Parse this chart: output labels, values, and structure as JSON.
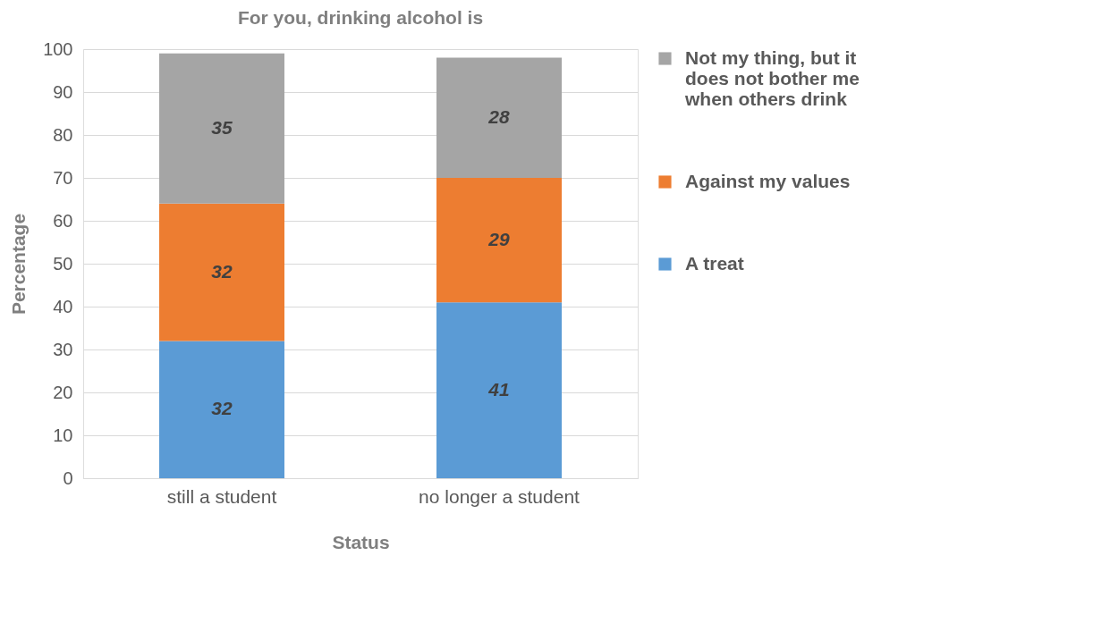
{
  "chart_data": {
    "type": "bar",
    "title": "For you, drinking alcohol is",
    "xlabel": "Status",
    "ylabel": "Percentage",
    "categories": [
      "still a student",
      "no longer a student"
    ],
    "series": [
      {
        "name": "A  treat",
        "color": "#5b9bd5",
        "values": [
          32,
          41
        ]
      },
      {
        "name": "Against my values",
        "color": "#ed7d31",
        "values": [
          32,
          29
        ]
      },
      {
        "name": "Not my thing, but it does not bother me when others drink",
        "color": "#a5a5a5",
        "values": [
          35,
          28
        ]
      }
    ],
    "stacked": true,
    "ylim": [
      0,
      100
    ],
    "yticks": [
      0,
      10,
      20,
      30,
      40,
      50,
      60,
      70,
      80,
      90,
      100
    ],
    "grid": "y",
    "legend": "right",
    "data_labels": true
  }
}
